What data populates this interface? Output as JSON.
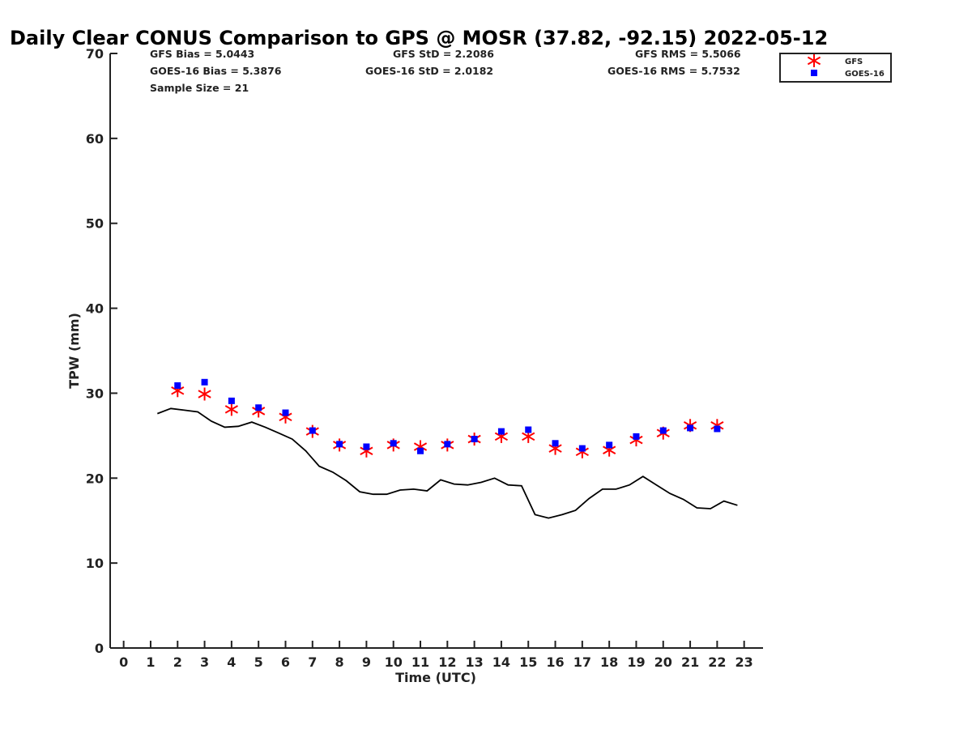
{
  "chart_data": {
    "type": "scatter",
    "title": "Daily Clear CONUS Comparison to GPS @ MOSR (37.82, -92.15) 2022-05-12",
    "xlabel": "Time (UTC)",
    "ylabel": "TPW (mm)",
    "xlim": [
      -0.5,
      23.7
    ],
    "ylim": [
      0,
      70
    ],
    "xticks": [
      0,
      1,
      2,
      3,
      4,
      5,
      6,
      7,
      8,
      9,
      10,
      11,
      12,
      13,
      14,
      15,
      16,
      17,
      18,
      19,
      20,
      21,
      22,
      23
    ],
    "yticks": [
      0,
      10,
      20,
      30,
      40,
      50,
      60,
      70
    ],
    "grid": false,
    "legend_position": "top-right",
    "stats": {
      "gfs_bias": "GFS Bias = 5.0443",
      "goes_bias": "GOES-16 Bias = 5.3876",
      "sample_size": "Sample Size = 21",
      "gfs_std": "GFS StD = 2.2086",
      "goes_std": "GOES-16 StD = 2.0182",
      "gfs_rms": "GFS RMS = 5.5066",
      "goes_rms": "GOES-16 RMS = 5.7532"
    },
    "series": [
      {
        "name": "GPS",
        "kind": "line",
        "color": "#000000",
        "x": [
          1.25,
          1.75,
          2.25,
          2.75,
          3.25,
          3.75,
          4.25,
          4.75,
          5.25,
          5.75,
          6.25,
          6.75,
          7.25,
          7.75,
          8.25,
          8.75,
          9.25,
          9.75,
          10.25,
          10.75,
          11.25,
          11.75,
          12.25,
          12.75,
          13.25,
          13.75,
          14.25,
          14.75,
          15.25,
          15.75,
          16.25,
          16.75,
          17.25,
          17.75,
          18.25,
          18.75,
          19.25,
          19.75,
          20.25,
          20.75,
          21.25,
          21.75,
          22.25,
          22.75
        ],
        "values": [
          27.6,
          28.2,
          28.0,
          27.8,
          26.7,
          26.0,
          26.1,
          26.6,
          26.0,
          25.3,
          24.6,
          23.2,
          21.4,
          20.7,
          19.7,
          18.4,
          18.1,
          18.1,
          18.6,
          18.7,
          18.5,
          19.8,
          19.3,
          19.2,
          19.5,
          20.0,
          19.2,
          19.1,
          15.7,
          15.3,
          15.7,
          16.2,
          17.6,
          18.7,
          18.7,
          19.2,
          20.2,
          19.2,
          18.2,
          17.5,
          16.5,
          16.4,
          17.3,
          16.8
        ]
      },
      {
        "name": "GFS",
        "kind": "marker",
        "marker": "asterisk",
        "color": "#ff0000",
        "x": [
          2,
          3,
          4,
          5,
          6,
          7,
          8,
          9,
          10,
          11,
          12,
          13,
          14,
          15,
          16,
          17,
          18,
          19,
          20,
          21,
          22
        ],
        "values": [
          30.3,
          29.9,
          28.1,
          27.9,
          27.2,
          25.5,
          23.9,
          23.2,
          23.9,
          23.7,
          23.9,
          24.6,
          24.9,
          24.9,
          23.5,
          23.1,
          23.3,
          24.5,
          25.3,
          26.2,
          26.2
        ]
      },
      {
        "name": "GOES-16",
        "kind": "marker",
        "marker": "square",
        "color": "#0000ff",
        "x": [
          2,
          3,
          4,
          5,
          6,
          7,
          8,
          9,
          10,
          11,
          12,
          13,
          14,
          15,
          16,
          17,
          18,
          19,
          20,
          21,
          22
        ],
        "values": [
          30.9,
          31.3,
          29.1,
          28.3,
          27.7,
          25.6,
          24.0,
          23.7,
          24.1,
          23.2,
          24.0,
          24.6,
          25.5,
          25.7,
          24.1,
          23.5,
          23.9,
          24.9,
          25.6,
          25.9,
          25.8
        ]
      }
    ]
  }
}
